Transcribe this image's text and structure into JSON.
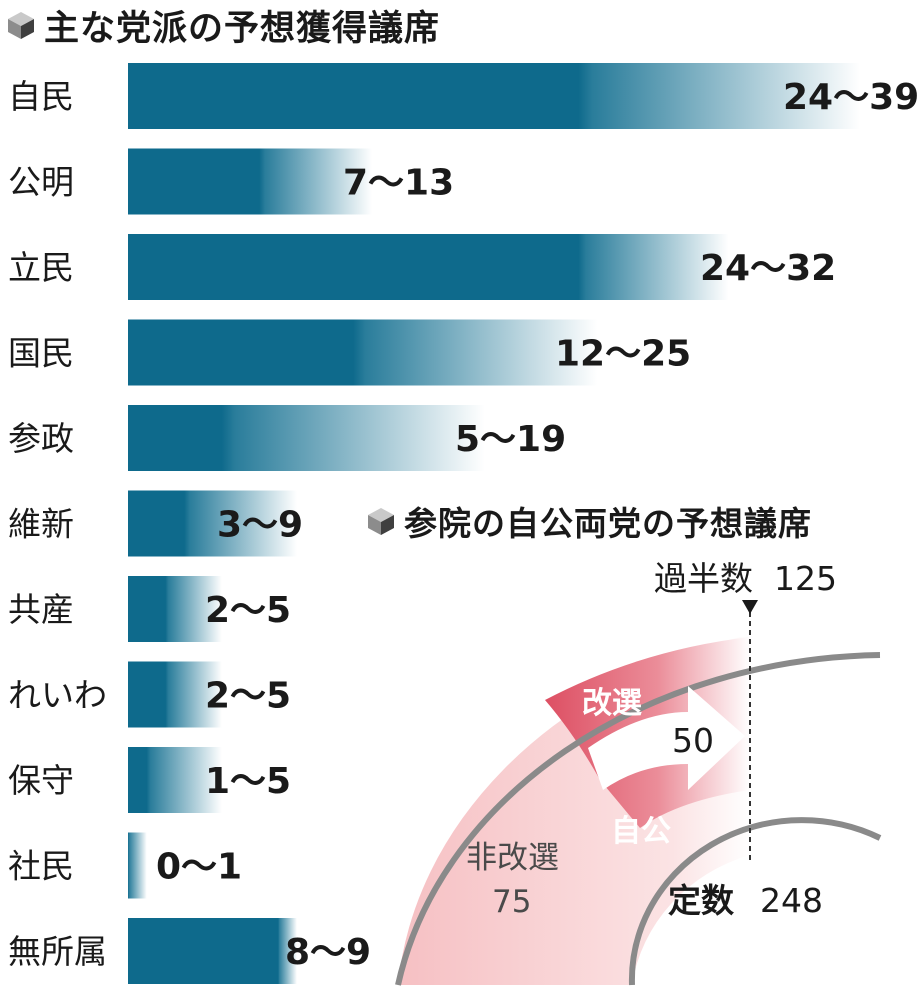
{
  "title": "主な党派の予想獲得議席",
  "colors": {
    "bar": "#0e6a8c",
    "fade": "#ffffff",
    "pink_light": "#f6c6c8",
    "pink_dark": "#df5568"
  },
  "chart_data": {
    "type": "bar",
    "orientation": "horizontal",
    "value_scale": {
      "min": 0,
      "max": 39
    },
    "categories": [
      "自民",
      "公明",
      "立民",
      "国民",
      "参政",
      "維新",
      "共産",
      "れいわ",
      "保守",
      "社民",
      "無所属"
    ],
    "series": [
      {
        "values_low": [
          24,
          7,
          24,
          12,
          5,
          3,
          2,
          2,
          1,
          0,
          8
        ]
      },
      {
        "values_high": [
          39,
          13,
          32,
          25,
          19,
          9,
          5,
          5,
          5,
          1,
          9
        ]
      }
    ],
    "value_labels": [
      "24〜39",
      "7〜13",
      "24〜32",
      "12〜25",
      "5〜19",
      "3〜9",
      "2〜5",
      "2〜5",
      "1〜5",
      "0〜1",
      "8〜9"
    ]
  },
  "diagram": {
    "title": "参院の自公両党の予想議席",
    "majority_label": "過半数",
    "majority_value": "125",
    "reelection_label": "改選",
    "arrow_value": "50",
    "coalition_label": "自公",
    "non_reelection_label": "非改選",
    "non_reelection_value": "75",
    "fixed_label": "定数",
    "fixed_value": "248"
  }
}
